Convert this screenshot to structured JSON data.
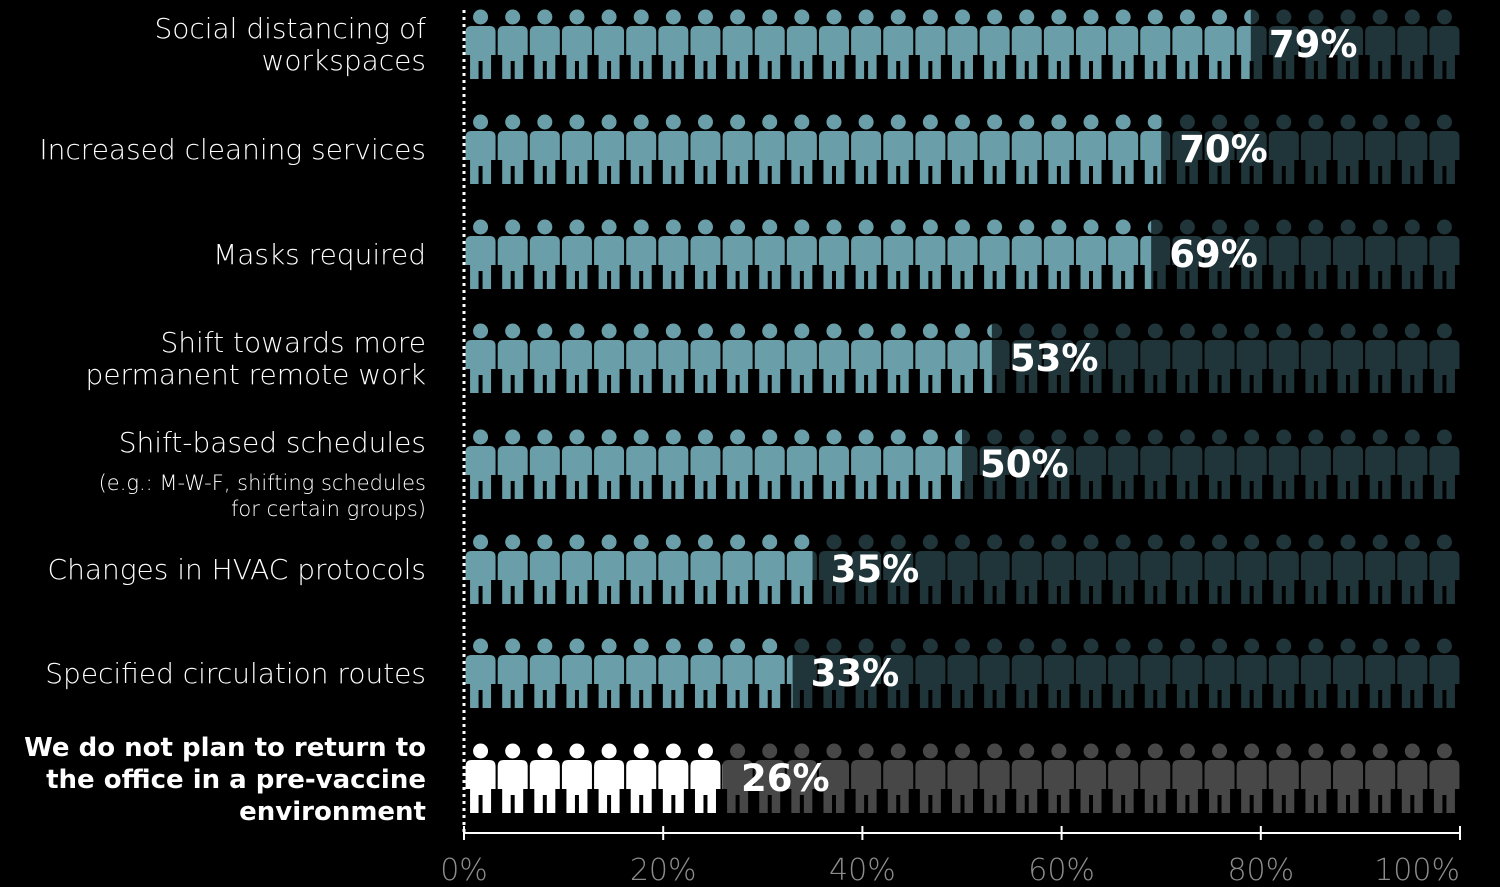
{
  "chart_data": {
    "type": "bar",
    "categories": [
      "Social distancing of workspaces",
      "Increased cleaning services",
      "Masks required",
      "Shift towards more permanent remote work",
      "Shift-based schedules",
      "Changes in HVAC protocols",
      "Specified circulation routes",
      "We do not plan to return to the office in a pre-vaccine environment"
    ],
    "category_lines": [
      [
        "Social distancing of",
        "workspaces"
      ],
      [
        "Increased cleaning services"
      ],
      [
        "Masks required"
      ],
      [
        "Shift towards more",
        "permanent remote work"
      ],
      [
        "Shift-based schedules"
      ],
      [
        "Changes in HVAC protocols"
      ],
      [
        "Specified circulation routes"
      ],
      [
        "We do not plan to return to",
        "the office in a pre-vaccine",
        "environment"
      ]
    ],
    "category_notes": [
      [],
      [],
      [],
      [],
      [
        "(e.g.: M-W-F, shifting schedules",
        "for certain groups)"
      ],
      [],
      [],
      []
    ],
    "emphasized": [
      false,
      false,
      false,
      false,
      false,
      false,
      false,
      true
    ],
    "values": [
      79,
      70,
      69,
      53,
      50,
      35,
      33,
      26
    ],
    "value_labels": [
      "79%",
      "70%",
      "69%",
      "53%",
      "50%",
      "35%",
      "33%",
      "26%"
    ],
    "xlim": [
      0,
      100
    ],
    "xticks": [
      "0%",
      "20%",
      "40%",
      "60%",
      "80%",
      "100%"
    ],
    "orientation": "horizontal",
    "icons_per_row": 31,
    "colors": {
      "background": "#000000",
      "filled": "#6a9ea8",
      "unfilled": "#1f3539",
      "emph_filled": "#ffffff",
      "emph_unfilled": "#474747",
      "axis": "#ffffff",
      "tick_label": "#8c8c8c"
    }
  }
}
